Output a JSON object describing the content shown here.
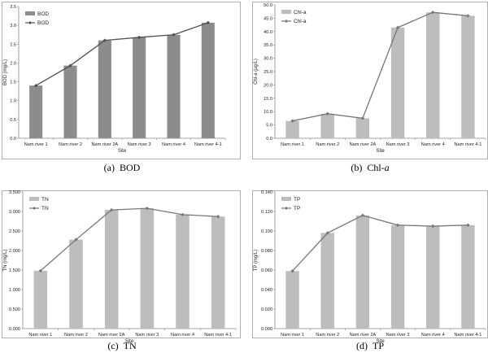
{
  "chart_data": [
    {
      "type": "bar",
      "panel": "a",
      "caption_prefix": "(a)",
      "caption_main": "BOD",
      "caption_italic": false,
      "categories": [
        "Nam river 1",
        "Nam river 2",
        "Nam river 2A",
        "Nam river 3",
        "Nam river 4",
        "Nam river 4-1"
      ],
      "series": [
        {
          "name": "BOD",
          "kind": "bar",
          "values": [
            1.4,
            1.93,
            2.6,
            2.68,
            2.75,
            3.07
          ],
          "color": "#8c8c8c"
        },
        {
          "name": "BOD",
          "kind": "line",
          "values": [
            1.4,
            1.93,
            2.6,
            2.68,
            2.75,
            3.07
          ],
          "color": "#505050"
        }
      ],
      "ylim": [
        0,
        3.5
      ],
      "yticks": [
        "0.0",
        "0.5",
        "1.0",
        "1.5",
        "2.0",
        "2.5",
        "3.0",
        "3.5"
      ],
      "xlabel": "Site",
      "ylabel": "BOD (mg/L)",
      "legend": "top-left"
    },
    {
      "type": "bar",
      "panel": "b",
      "caption_prefix": "(b)",
      "caption_main": "Chl-",
      "caption_italic_part": "a",
      "caption_italic": true,
      "categories": [
        "Nam river 1",
        "Nam river 2",
        "Nam river 2A",
        "Nam river 3",
        "Nam river 4",
        "Nam river 4-1"
      ],
      "series": [
        {
          "name": "Chl-a",
          "kind": "bar",
          "values": [
            6.5,
            9.2,
            7.5,
            41.5,
            47.2,
            45.9
          ],
          "color": "#bdbdbd"
        },
        {
          "name": "Chl-a",
          "kind": "line",
          "values": [
            6.5,
            9.2,
            7.5,
            41.5,
            47.2,
            45.9
          ],
          "color": "#777777"
        }
      ],
      "ylim": [
        0,
        50
      ],
      "yticks": [
        "0.0",
        "5.0",
        "10.0",
        "15.0",
        "20.0",
        "25.0",
        "30.0",
        "35.0",
        "40.0",
        "45.0",
        "50.0"
      ],
      "xlabel": "Site",
      "ylabel": "Chl-a (μg/L)",
      "legend": "top-left"
    },
    {
      "type": "bar",
      "panel": "c",
      "caption_prefix": "(c)",
      "caption_main": "TN",
      "caption_italic": false,
      "categories": [
        "Nam river 1",
        "Nam river 2",
        "Nam river 2A",
        "Nam river 3",
        "Nam river 4",
        "Nam river 4-1"
      ],
      "series": [
        {
          "name": "TN",
          "kind": "bar",
          "values": [
            1.48,
            2.28,
            3.04,
            3.08,
            2.92,
            2.87
          ],
          "color": "#bdbdbd"
        },
        {
          "name": "TN",
          "kind": "line",
          "values": [
            1.48,
            2.28,
            3.04,
            3.08,
            2.92,
            2.87
          ],
          "color": "#777777"
        }
      ],
      "ylim": [
        0,
        3.5
      ],
      "yticks": [
        "0.000",
        "0.500",
        "1.000",
        "1.500",
        "2.000",
        "2.500",
        "3.000",
        "3.500"
      ],
      "xlabel": "Site",
      "ylabel": "TN (mg/L)",
      "legend": "top-left"
    },
    {
      "type": "bar",
      "panel": "d",
      "caption_prefix": "(d)",
      "caption_main": "TP",
      "caption_italic": false,
      "categories": [
        "Nam river 1",
        "Nam river 2",
        "Nam river 2A",
        "Nam river 3",
        "Nam river 4",
        "Nam river 4-1"
      ],
      "series": [
        {
          "name": "TP",
          "kind": "bar",
          "values": [
            0.059,
            0.098,
            0.116,
            0.106,
            0.105,
            0.106
          ],
          "color": "#bdbdbd"
        },
        {
          "name": "TP",
          "kind": "line",
          "values": [
            0.059,
            0.098,
            0.116,
            0.106,
            0.105,
            0.106
          ],
          "color": "#777777"
        }
      ],
      "ylim": [
        0,
        0.14
      ],
      "yticks": [
        "0.000",
        "0.020",
        "0.040",
        "0.060",
        "0.080",
        "0.100",
        "0.120",
        "0.140"
      ],
      "xlabel": "Site",
      "ylabel": "TP (mg/L)",
      "legend": "top-left"
    }
  ]
}
